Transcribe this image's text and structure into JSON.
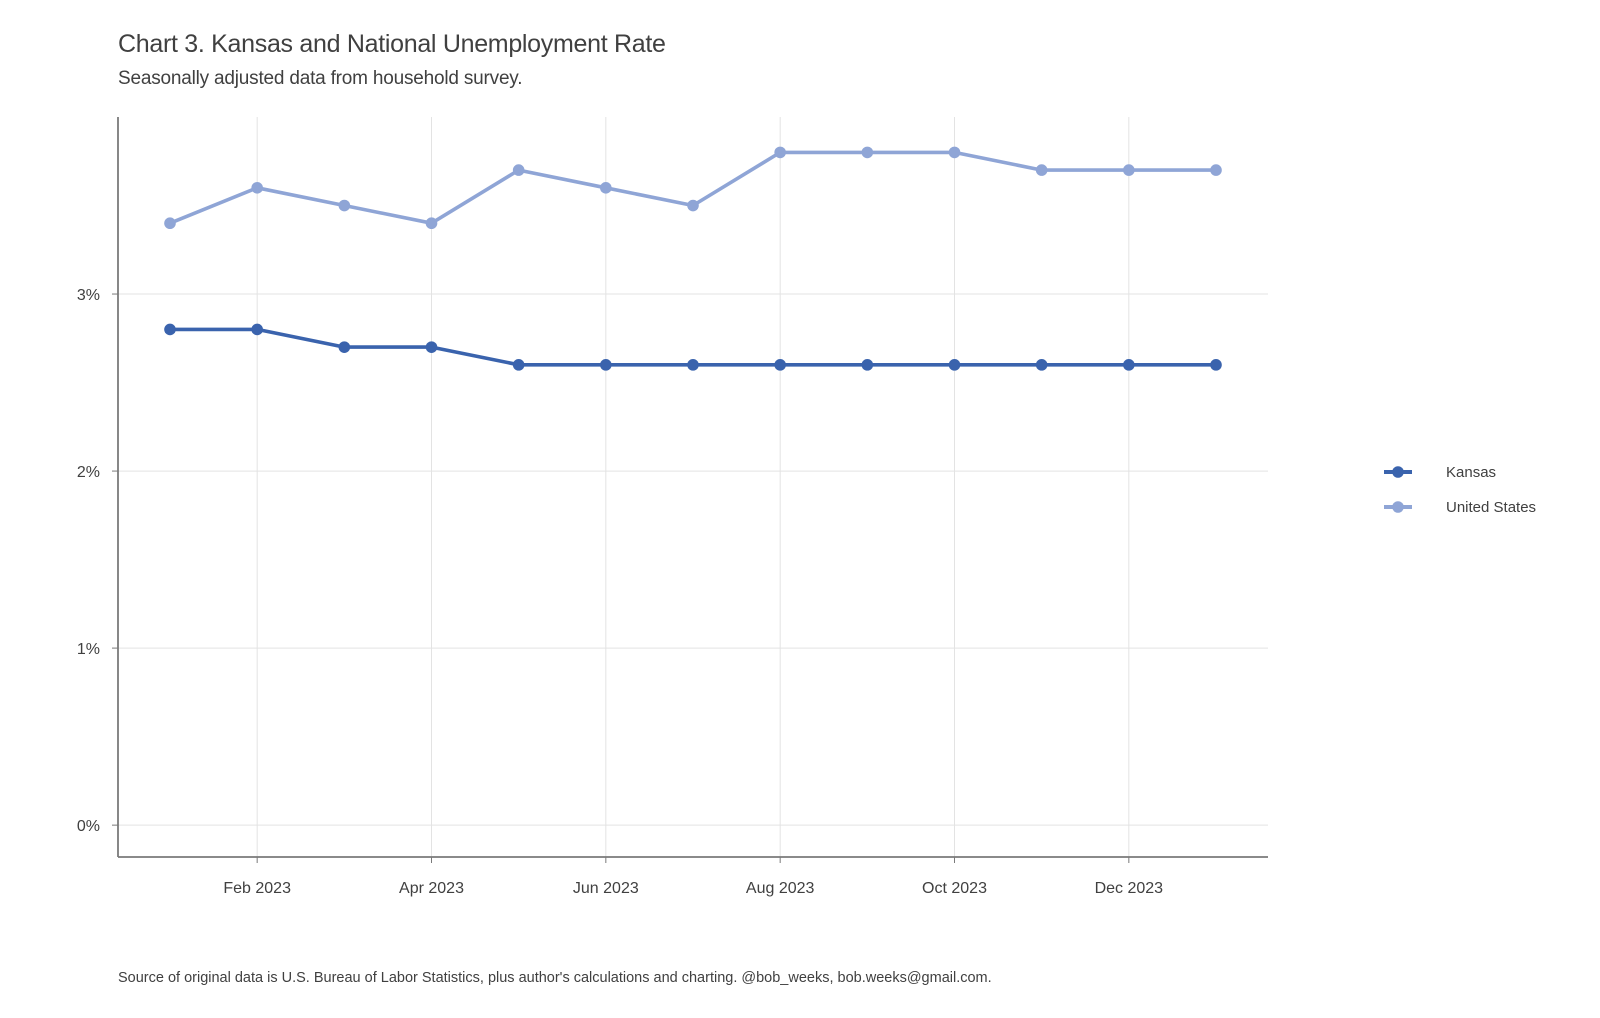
{
  "title": "Chart 3. Kansas and National Unemployment Rate",
  "subtitle": "Seasonally adjusted data from household survey.",
  "caption": "Source of original data is U.S. Bureau of Labor Statistics, plus author's calculations and charting. @bob_weeks, bob.weeks@gmail.com.",
  "colors": {
    "kansas": "#3a63ad",
    "united_states": "#8fa5d6",
    "grid": "#e3e3e3",
    "axis": "#7a7a7a"
  },
  "chart_data": {
    "type": "line",
    "title": "Chart 3. Kansas and National Unemployment Rate",
    "subtitle": "Seasonally adjusted data from household survey.",
    "xlabel": "",
    "ylabel": "",
    "x": [
      "2023-01",
      "2023-02",
      "2023-03",
      "2023-04",
      "2023-05",
      "2023-06",
      "2023-07",
      "2023-08",
      "2023-09",
      "2023-10",
      "2023-11",
      "2023-12",
      "2024-01"
    ],
    "x_ticks": [
      {
        "date": "2023-02",
        "label": "Feb 2023"
      },
      {
        "date": "2023-04",
        "label": "Apr 2023"
      },
      {
        "date": "2023-06",
        "label": "Jun 2023"
      },
      {
        "date": "2023-08",
        "label": "Aug 2023"
      },
      {
        "date": "2023-10",
        "label": "Oct 2023"
      },
      {
        "date": "2023-12",
        "label": "Dec 2023"
      }
    ],
    "y_ticks": [
      {
        "value": 0,
        "label": "0%"
      },
      {
        "value": 1,
        "label": "1%"
      },
      {
        "value": 2,
        "label": "2%"
      },
      {
        "value": 3,
        "label": "3%"
      }
    ],
    "ylim": [
      -0.18,
      4.0
    ],
    "grid": true,
    "legend_position": "right",
    "series": [
      {
        "name": "Kansas",
        "color": "#3a63ad",
        "values": [
          2.8,
          2.8,
          2.7,
          2.7,
          2.6,
          2.6,
          2.6,
          2.6,
          2.6,
          2.6,
          2.6,
          2.6,
          2.6
        ]
      },
      {
        "name": "United States",
        "color": "#8fa5d6",
        "values": [
          3.4,
          3.6,
          3.5,
          3.4,
          3.7,
          3.6,
          3.5,
          3.8,
          3.8,
          3.8,
          3.7,
          3.7,
          3.7
        ]
      }
    ]
  }
}
